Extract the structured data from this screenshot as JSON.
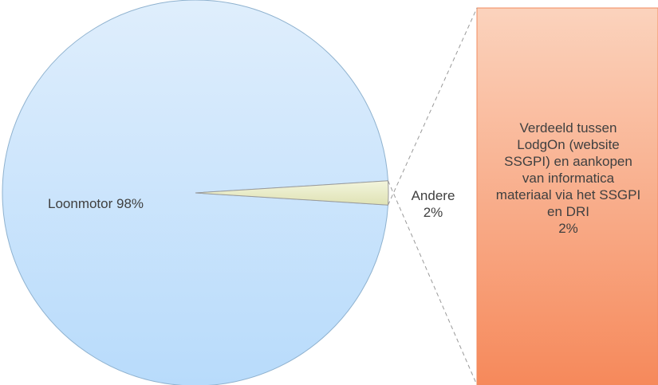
{
  "chart_data": {
    "type": "pie",
    "categories": [
      "Loonmotor",
      "Andere"
    ],
    "values": [
      98,
      2
    ],
    "value_labels": [
      "98%",
      "2%"
    ],
    "colors": [
      "#cfe5fb",
      "#eef0d2"
    ],
    "breakdown": {
      "type": "bar",
      "categories": [
        "Verdeeld tussen LodgOn (website SSGPI) en aankopen van informatica materiaal via het SSGPI en DRI"
      ],
      "values": [
        2
      ],
      "value_labels": [
        "2%"
      ],
      "color": "#f8a47e"
    }
  }
}
